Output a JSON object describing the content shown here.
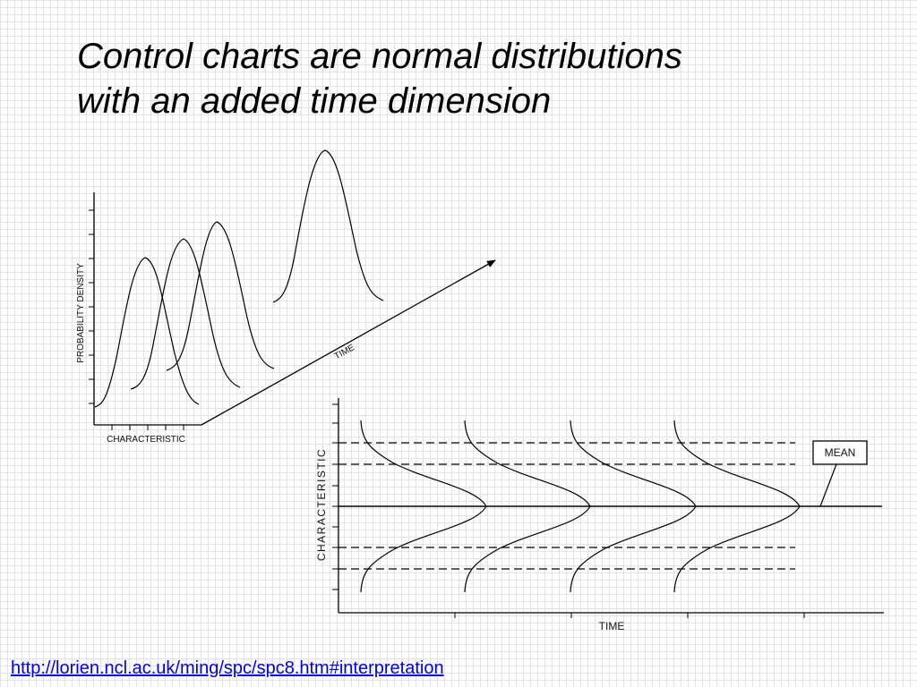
{
  "slide": {
    "title_line1": "Control charts are normal distributions",
    "title_line2": "with an added time dimension",
    "source_url": "http://lorien.ncl.ac.uk/ming/spc/spc8.htm#interpretation"
  },
  "diagram_3d": {
    "y_axis_label": "PROBABILITY DENSITY",
    "x_axis_label": "CHARACTERISTIC",
    "time_label": "TIME"
  },
  "control_chart": {
    "y_axis_label": "CHARACTERISTIC",
    "x_axis_label": "TIME",
    "mean_label": "MEAN"
  }
}
